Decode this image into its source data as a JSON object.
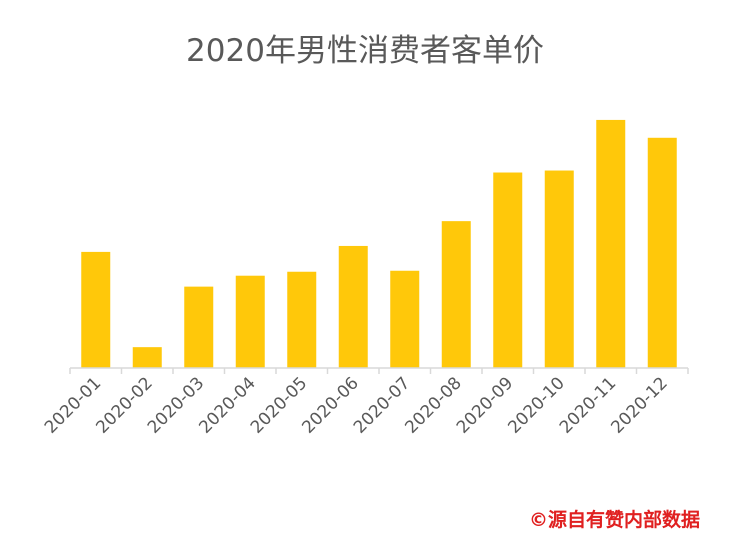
{
  "colors": {
    "bar": "#FFC80A",
    "axis": "#D9D9D9",
    "title": "#595959",
    "tick_label": "#595959",
    "source": "#E02020"
  },
  "source_note": "©源自有赞内部数据",
  "chart_data": {
    "type": "bar",
    "title": "2020年男性消费者客单价",
    "xlabel": "",
    "ylabel": "",
    "categories": [
      "2020-01",
      "2020-02",
      "2020-03",
      "2020-04",
      "2020-05",
      "2020-06",
      "2020-07",
      "2020-08",
      "2020-09",
      "2020-10",
      "2020-11",
      "2020-12"
    ],
    "values": [
      117,
      21,
      82,
      93,
      97,
      123,
      98,
      148,
      197,
      199,
      250,
      232
    ],
    "ylim": [
      0,
      260
    ],
    "grid": false,
    "y_axis_visible": false,
    "legend": "none"
  }
}
